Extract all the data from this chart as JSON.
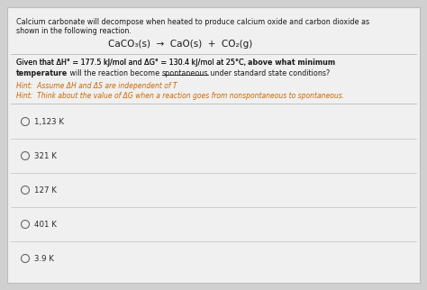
{
  "bg_color": "#d0d0d0",
  "card_bg": "#f0f0f0",
  "card_edge": "#bbbbbb",
  "title_line1": "Calcium carbonate will decompose when heated to produce calcium oxide and carbon dioxide as",
  "title_line2": "shown in the following reaction.",
  "equation": "CaCO₃(s)  →  CaO(s)  +  CO₂(g)",
  "q_part1": "Given that ΔH° = 177.5 kJ/mol and ΔG° = 130.4 kJ/mol at 25°C, ",
  "q_part2": "above what minimum",
  "q_part3": "temperature",
  "q_part4": " will the reaction become ",
  "q_part5": "spontaneous",
  "q_part6": " under standard state conditions?",
  "hint1": "Hint:  Assume ΔH and ΔS are independent of T",
  "hint2": "Hint:  Think about the value of ΔG when a reaction goes from nonspontaneous to spontaneous.",
  "options": [
    "1,123 K",
    "321 K",
    "127 K",
    "401 K",
    "3.9 K"
  ],
  "divider_color": "#c0c0c0",
  "hint_color": "#cc6600",
  "text_color": "#1a1a1a",
  "option_text_color": "#2a2a2a",
  "fs_title": 5.8,
  "fs_eq": 7.5,
  "fs_question": 5.8,
  "fs_hint": 5.5,
  "fs_option": 6.2
}
